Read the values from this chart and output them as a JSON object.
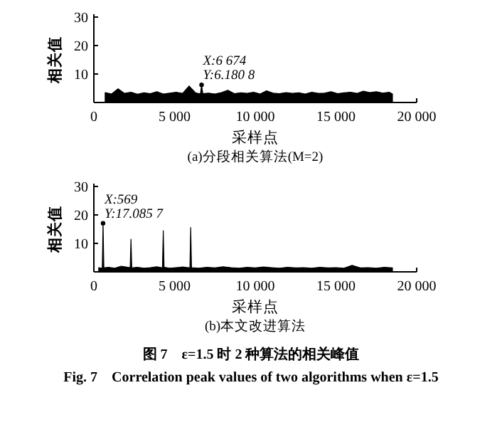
{
  "chart_data": [
    {
      "type": "area",
      "title": "(a)分段相关算法(M=2)",
      "xlabel": "采样点",
      "ylabel": "相关值",
      "xlim": [
        0,
        20000
      ],
      "ylim": [
        0,
        30
      ],
      "xticks": [
        0,
        {
          "value": 5000,
          "label": "5 000"
        },
        {
          "value": 10000,
          "label": "10 000"
        },
        {
          "value": 15000,
          "label": "15 000"
        },
        {
          "value": 20000,
          "label": "20 000"
        }
      ],
      "yticks": [
        10,
        20,
        30
      ],
      "series": [
        {
          "color": "#000000",
          "x": [
            700,
            1100,
            1500,
            1900,
            2300,
            2700,
            3100,
            3500,
            3900,
            4300,
            4700,
            5100,
            5500,
            5900,
            6300,
            6600,
            6674,
            6750,
            7100,
            7500,
            7900,
            8300,
            8700,
            9100,
            9500,
            9900,
            10300,
            10700,
            11100,
            11500,
            11900,
            12300,
            12700,
            13100,
            13500,
            13900,
            14300,
            14700,
            15100,
            15500,
            15900,
            16300,
            16700,
            17100,
            17500,
            17900,
            18300,
            18500
          ],
          "values": [
            3.5,
            3.0,
            4.8,
            3.2,
            3.6,
            2.9,
            3.4,
            3.1,
            3.8,
            3.0,
            3.3,
            3.6,
            3.2,
            5.8,
            3.4,
            3.0,
            6.1808,
            3.1,
            3.3,
            3.0,
            3.5,
            4.3,
            3.1,
            3.4,
            3.2,
            3.6,
            3.0,
            4.1,
            3.3,
            3.1,
            3.5,
            3.2,
            3.4,
            3.0,
            3.6,
            3.2,
            3.3,
            3.8,
            3.1,
            3.4,
            3.6,
            3.2,
            4.0,
            3.5,
            3.8,
            3.3,
            3.6,
            3.0
          ]
        }
      ],
      "annotations": [
        {
          "text": "X:6 674\nY:6.180 8",
          "x": 6674,
          "y": 6.1808
        }
      ]
    },
    {
      "type": "area",
      "title": "(b)本文改进算法",
      "xlabel": "采样点",
      "ylabel": "相关值",
      "xlim": [
        0,
        20000
      ],
      "ylim": [
        0,
        30
      ],
      "xticks": [
        0,
        {
          "value": 5000,
          "label": "5 000"
        },
        {
          "value": 10000,
          "label": "10 000"
        },
        {
          "value": 15000,
          "label": "15 000"
        },
        {
          "value": 20000,
          "label": "20 000"
        }
      ],
      "yticks": [
        10,
        20,
        30
      ],
      "series": [
        {
          "color": "#000000",
          "x": [
            300,
            520,
            569,
            620,
            900,
            1300,
            1700,
            2250,
            2300,
            2350,
            2700,
            3100,
            3500,
            3900,
            4250,
            4300,
            4350,
            4700,
            5100,
            5500,
            5950,
            6000,
            6050,
            6500,
            7000,
            7500,
            8000,
            8500,
            9000,
            9500,
            10000,
            10500,
            11000,
            11500,
            12000,
            12500,
            13000,
            13500,
            14000,
            14500,
            15000,
            15500,
            16000,
            16500,
            17000,
            17500,
            18000,
            18500
          ],
          "values": [
            1.5,
            1.2,
            17.0857,
            1.4,
            1.6,
            1.3,
            2.0,
            1.5,
            11.5,
            1.4,
            1.6,
            1.3,
            1.5,
            1.8,
            1.4,
            14.5,
            1.6,
            1.3,
            1.5,
            1.7,
            1.4,
            15.6,
            1.5,
            1.3,
            1.6,
            1.4,
            1.8,
            1.5,
            1.3,
            1.6,
            1.4,
            1.7,
            1.5,
            1.3,
            1.6,
            1.4,
            1.5,
            1.3,
            1.6,
            1.4,
            1.5,
            1.3,
            2.3,
            1.4,
            1.5,
            1.3,
            1.6,
            1.4
          ]
        }
      ],
      "annotations": [
        {
          "text": "X:569\nY:17.085 7",
          "x": 569,
          "y": 17.0857
        },
        "图 7　ε=1.5 时 2 种算法的相关峰值",
        "Fig. 7　Correlation peak values of two algorithms when ε=1.5"
      ]
    }
  ]
}
